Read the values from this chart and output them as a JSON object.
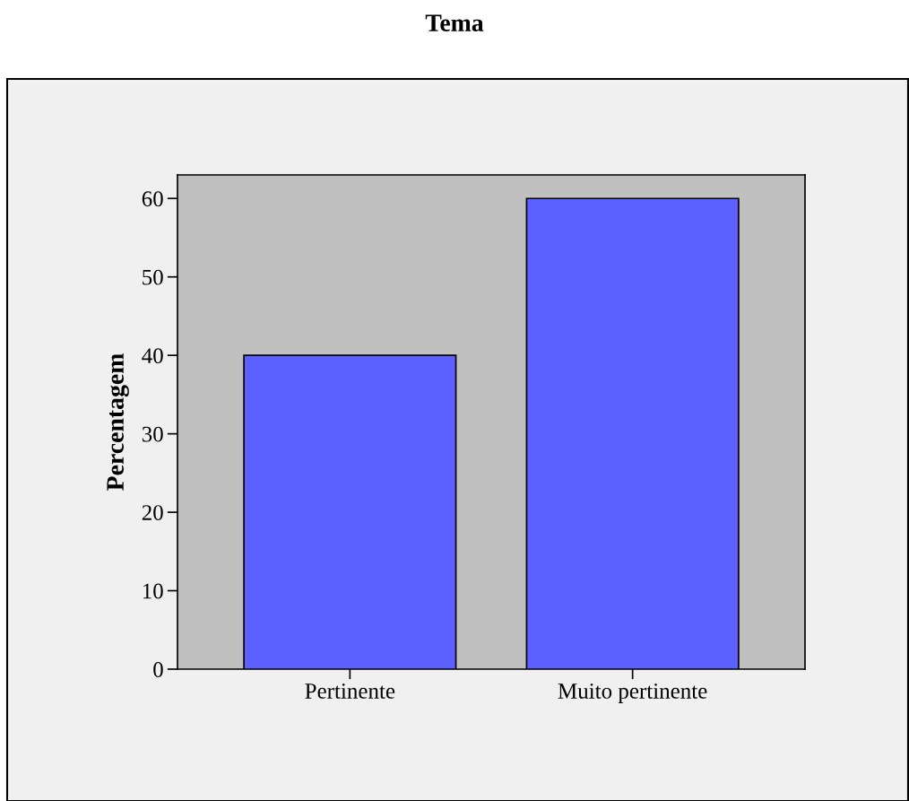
{
  "chart_data": {
    "type": "bar",
    "title": "Tema",
    "ylabel": "Percentagem",
    "categories": [
      "Pertinente",
      "Muito pertinente"
    ],
    "values": [
      40,
      60
    ],
    "color": "#5b60ff",
    "ylim": [
      0,
      63
    ],
    "yticks": [
      0,
      10,
      20,
      30,
      40,
      50,
      60
    ],
    "grid": false,
    "legend": false
  }
}
